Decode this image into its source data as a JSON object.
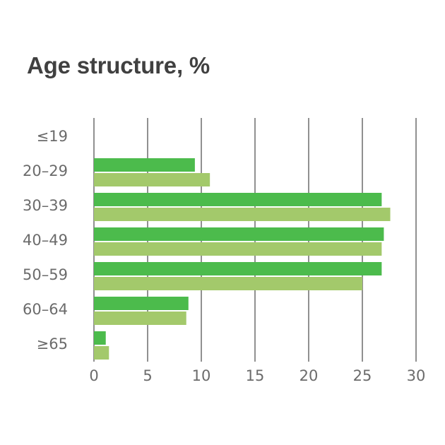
{
  "chart_data": {
    "type": "bar",
    "orientation": "horizontal",
    "title": "Age structure, %",
    "xlabel": "",
    "ylabel": "",
    "categories": [
      "≤19",
      "20–29",
      "30–39",
      "40–49",
      "50–59",
      "60–64",
      "≥65"
    ],
    "series": [
      {
        "values": [
          0,
          9.4,
          26.8,
          27,
          26.8,
          8.8,
          1.1
        ],
        "color": "#4cbb4c"
      },
      {
        "values": [
          0,
          10.8,
          27.6,
          26.8,
          25,
          8.6,
          1.4
        ],
        "color": "#a3c96b"
      }
    ],
    "xlim": [
      0,
      30
    ],
    "xticks": [
      "0",
      "5",
      "10",
      "15",
      "20",
      "25",
      "30"
    ],
    "grid": "vertical",
    "legend": "none"
  }
}
